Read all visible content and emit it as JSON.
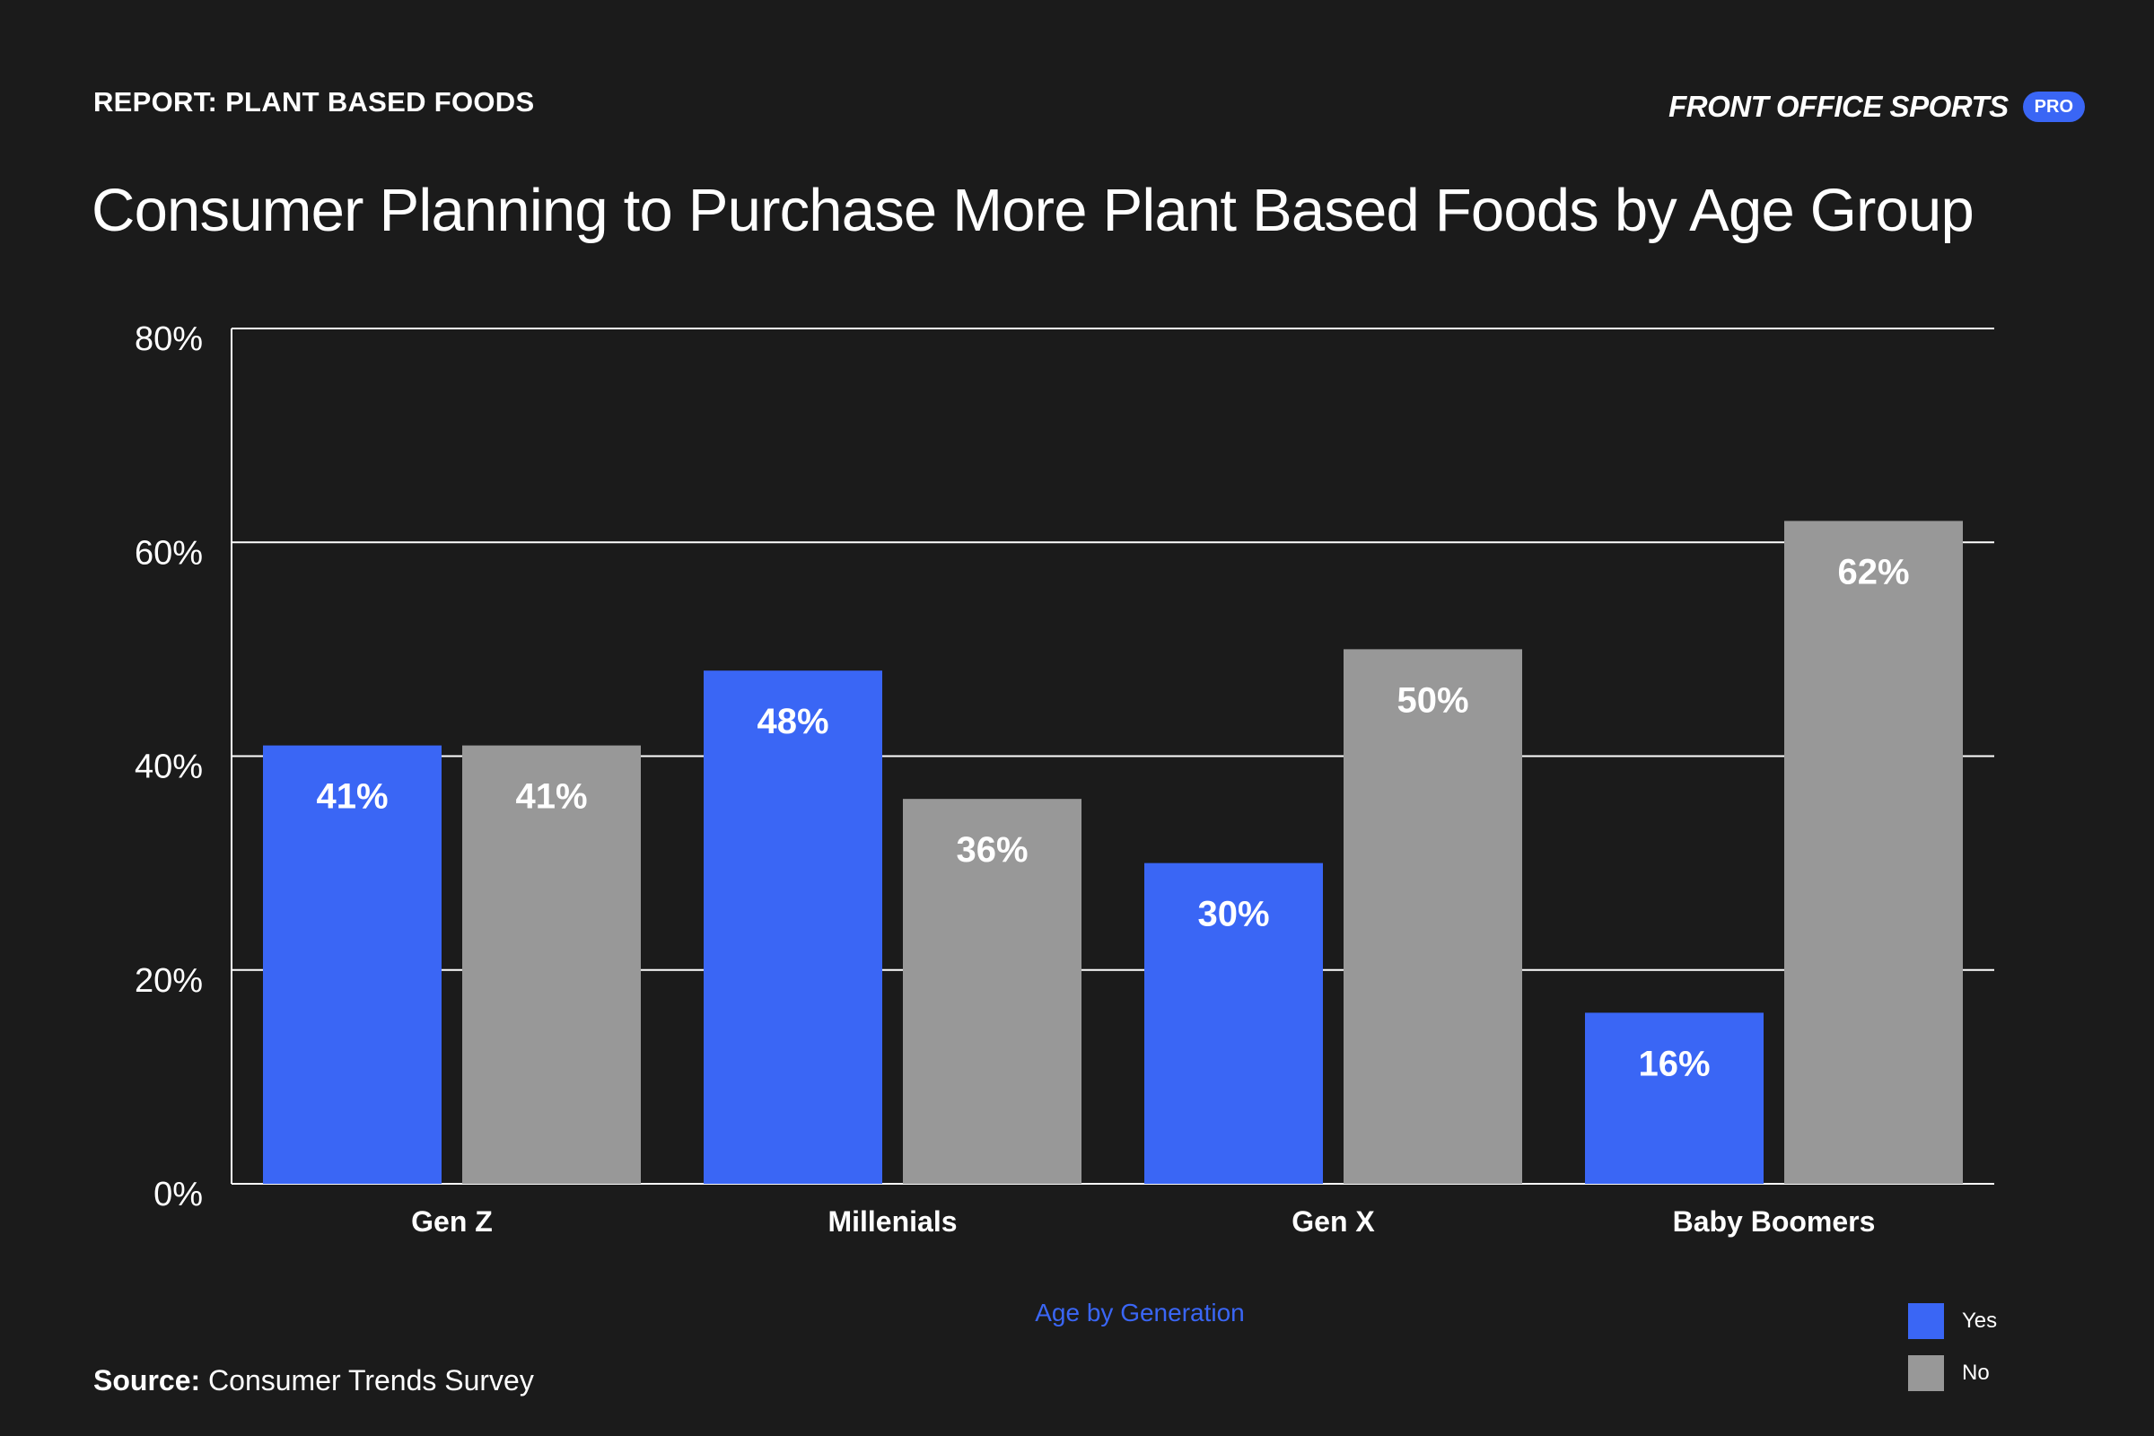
{
  "header": {
    "report_label": "REPORT: PLANT BASED FOODS",
    "brand_name": "FRONT OFFICE SPORTS",
    "brand_badge": "PRO"
  },
  "title": "Consumer Planning to Purchase More Plant Based Foods by Age Group",
  "source": {
    "prefix": "Source:",
    "text": " Consumer Trends Survey"
  },
  "colors": {
    "background": "#1b1b1b",
    "yes": "#3a66f5",
    "no": "#989898",
    "axis_title": "#3a66f5"
  },
  "chart_data": {
    "type": "bar",
    "title": "Consumer Planning to Purchase More Plant Based Foods by Age Group",
    "xlabel": "Age by Generation",
    "ylabel": "",
    "categories": [
      "Gen Z",
      "Millenials",
      "Gen X",
      "Baby Boomers"
    ],
    "series": [
      {
        "name": "Yes",
        "values": [
          41,
          48,
          30,
          16
        ],
        "labels": [
          "41%",
          "48%",
          "30%",
          "16%"
        ]
      },
      {
        "name": "No",
        "values": [
          41,
          36,
          50,
          62
        ],
        "labels": [
          "41%",
          "36%",
          "50%",
          "62%"
        ]
      }
    ],
    "ylim": [
      0,
      80
    ],
    "yticks": [
      0,
      20,
      40,
      60,
      80
    ],
    "ytick_labels": [
      "0%",
      "20%",
      "40%",
      "60%",
      "80%"
    ],
    "grid": true,
    "legend_position": "bottom-right"
  }
}
